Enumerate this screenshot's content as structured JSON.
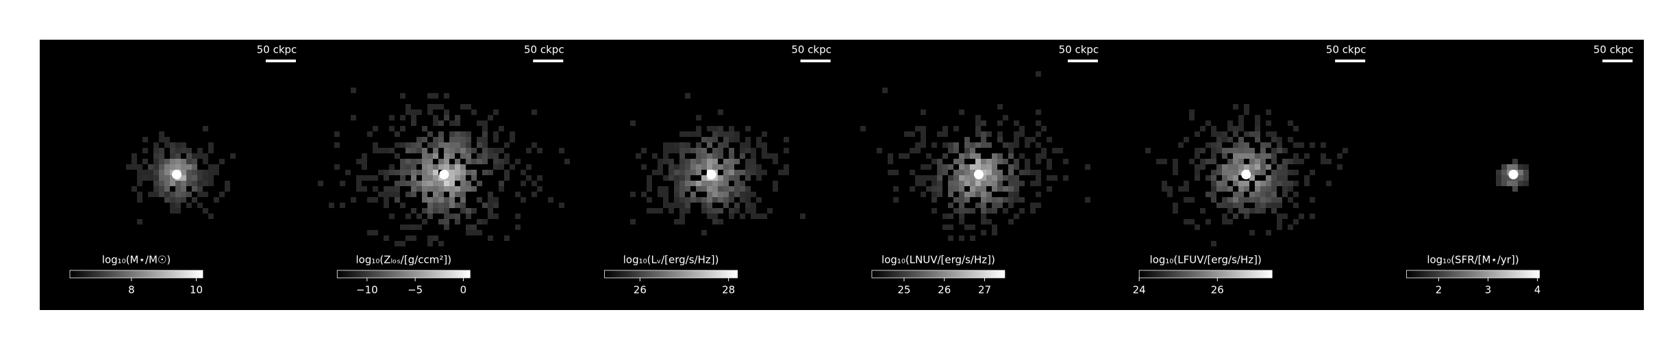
{
  "chart_data": [
    {
      "type": "image",
      "colorbar_label": "log₁₀(M⋆/M☉)",
      "scalebar": "50 ckpc",
      "clim": [
        6.1,
        10.2
      ],
      "ticks": [
        8,
        10
      ],
      "spread": 0.6
    },
    {
      "type": "image",
      "colorbar_label": "log₁₀(Zₗₒₛ/[g/ccm²])",
      "scalebar": "50 ckpc",
      "clim": [
        -13.1,
        0.7
      ],
      "ticks": [
        {
          "value": -10,
          "label": "−10"
        },
        {
          "value": -5,
          "label": "−5"
        },
        0
      ],
      "spread": 1.4
    },
    {
      "type": "image",
      "colorbar_label": "log₁₀(Lᵥ/[erg/s/Hz])",
      "scalebar": "50 ckpc",
      "clim": [
        25.2,
        28.2
      ],
      "ticks": [
        26,
        28
      ],
      "spread": 1.0
    },
    {
      "type": "image",
      "colorbar_label": "log₁₀(LNUV/[erg/s/Hz])",
      "scalebar": "50 ckpc",
      "clim": [
        24.2,
        27.5
      ],
      "ticks": [
        25,
        26,
        27
      ],
      "spread": 1.1
    },
    {
      "type": "image",
      "colorbar_label": "log₁₀(LFUV/[erg/s/Hz])",
      "scalebar": "50 ckpc",
      "clim": [
        24,
        27.4
      ],
      "ticks": [
        24,
        26
      ],
      "spread": 1.1
    },
    {
      "type": "image",
      "colorbar_label": "log₁₀(SFR/[M⋆/yr])",
      "scalebar": "50 ckpc",
      "clim": [
        1.35,
        4.04
      ],
      "ticks": [
        2,
        3,
        4
      ],
      "spread": 0.2
    }
  ]
}
